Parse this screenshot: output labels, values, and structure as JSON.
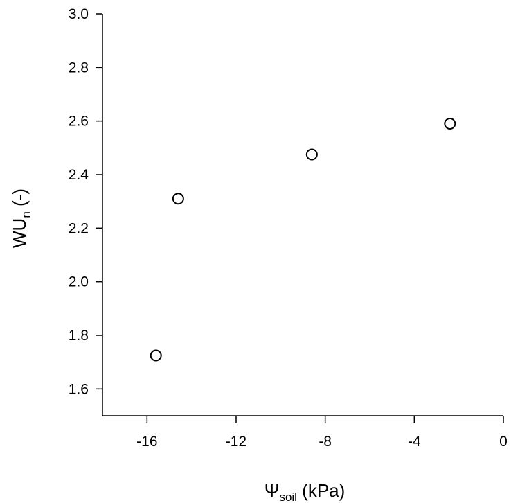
{
  "chart_data": {
    "type": "scatter",
    "xlabel": {
      "main": "Ψ",
      "sub": "soil",
      "rest": " (kPa)"
    },
    "ylabel": {
      "main": "WU",
      "sub": "n",
      "rest": " (-)"
    },
    "xlim": [
      -18,
      0
    ],
    "ylim": [
      1.5,
      3.0
    ],
    "xticks": [
      -16,
      -12,
      -8,
      -4,
      0
    ],
    "yticks": [
      1.6,
      1.8,
      2.0,
      2.2,
      2.4,
      2.6,
      2.8,
      3.0
    ],
    "xtick_labels": [
      "-16",
      "-12",
      "-8",
      "-4",
      "0"
    ],
    "ytick_labels": [
      "1.6",
      "1.8",
      "2.0",
      "2.2",
      "2.4",
      "2.6",
      "2.8",
      "3.0"
    ],
    "grid": false,
    "marker": "open-circle",
    "points": [
      {
        "x": -15.6,
        "y": 1.725
      },
      {
        "x": -14.6,
        "y": 2.31
      },
      {
        "x": -8.6,
        "y": 2.475
      },
      {
        "x": -2.4,
        "y": 2.59
      }
    ]
  }
}
